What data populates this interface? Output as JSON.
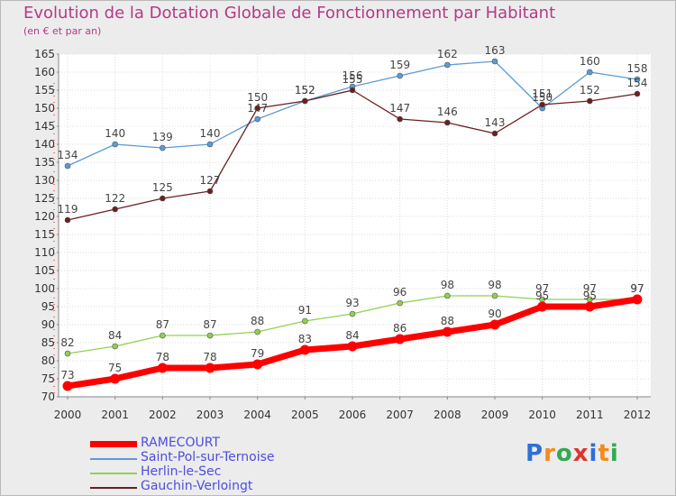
{
  "chart_data": {
    "type": "line",
    "title": "Evolution de la Dotation Globale de Fonctionnement par Habitant",
    "subtitle": "(en € et par an)",
    "x": [
      "2000",
      "2001",
      "2002",
      "2003",
      "2004",
      "2005",
      "2006",
      "2007",
      "2008",
      "2009",
      "2010",
      "2011",
      "2012"
    ],
    "ylim": [
      70,
      165
    ],
    "yticks": [
      70,
      75,
      80,
      85,
      90,
      95,
      100,
      105,
      110,
      115,
      120,
      125,
      130,
      135,
      140,
      145,
      150,
      155,
      160,
      165
    ],
    "series": [
      {
        "name": "Saint-Pol-sur-Ternoise",
        "color": "#5b9bd5",
        "values": [
          134,
          140,
          139,
          140,
          147,
          152,
          156,
          159,
          162,
          163,
          150,
          160,
          158
        ]
      },
      {
        "name": "Herlin-le-Sec",
        "color": "#92d050",
        "values": [
          82,
          84,
          87,
          87,
          88,
          91,
          93,
          96,
          98,
          98,
          97,
          97,
          97
        ]
      },
      {
        "name": "Gauchin-Verloingt",
        "color": "#6b1f1f",
        "values": [
          119,
          122,
          125,
          127,
          150,
          152,
          155,
          147,
          146,
          143,
          151,
          152,
          154
        ]
      },
      {
        "name": "RAMECOURT",
        "color": "#ff0000",
        "values": [
          73,
          75,
          78,
          78,
          79,
          83,
          84,
          86,
          88,
          90,
          95,
          95,
          97
        ]
      }
    ]
  },
  "legend": [
    {
      "name": "RAMECOURT",
      "color": "#ff0000"
    },
    {
      "name": "Saint-Pol-sur-Ternoise",
      "color": "#5b9bd5"
    },
    {
      "name": "Herlin-le-Sec",
      "color": "#92d050"
    },
    {
      "name": "Gauchin-Verloingt",
      "color": "#6b1f1f"
    }
  ],
  "logo": {
    "text": "Proxiti"
  }
}
